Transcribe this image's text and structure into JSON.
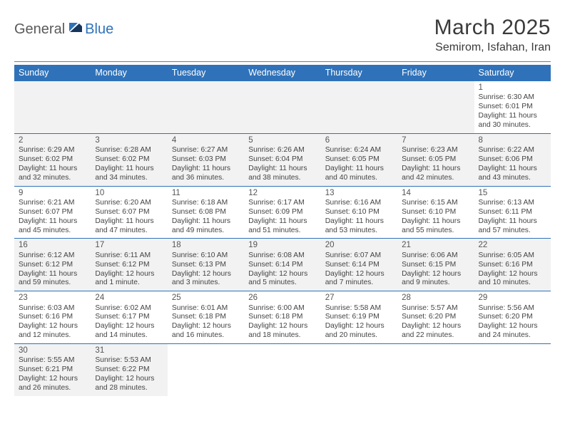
{
  "logo": {
    "general": "General",
    "blue": "Blue"
  },
  "title": "March 2025",
  "location": "Semirom, Isfahan, Iran",
  "colors": {
    "header_bg": "#2f72b9",
    "header_fg": "#ffffff",
    "alt_row_bg": "#f2f2f2",
    "rule": "#7a7a7a",
    "week_sep": "#2f72b9",
    "text": "#444444"
  },
  "day_names": [
    "Sunday",
    "Monday",
    "Tuesday",
    "Wednesday",
    "Thursday",
    "Friday",
    "Saturday"
  ],
  "layout": {
    "first_weekday_index": 6,
    "days_in_month": 31,
    "cell_font_size_pt": 8,
    "daynum_font_size_pt": 9,
    "title_font_size_pt": 22,
    "location_font_size_pt": 12
  },
  "weeks": [
    [
      {
        "empty": true
      },
      {
        "empty": true
      },
      {
        "empty": true
      },
      {
        "empty": true
      },
      {
        "empty": true
      },
      {
        "empty": true
      },
      {
        "num": "1",
        "sunrise": "Sunrise: 6:30 AM",
        "sunset": "Sunset: 6:01 PM",
        "daylight1": "Daylight: 11 hours",
        "daylight2": "and 30 minutes."
      }
    ],
    [
      {
        "num": "2",
        "sunrise": "Sunrise: 6:29 AM",
        "sunset": "Sunset: 6:02 PM",
        "daylight1": "Daylight: 11 hours",
        "daylight2": "and 32 minutes."
      },
      {
        "num": "3",
        "sunrise": "Sunrise: 6:28 AM",
        "sunset": "Sunset: 6:02 PM",
        "daylight1": "Daylight: 11 hours",
        "daylight2": "and 34 minutes."
      },
      {
        "num": "4",
        "sunrise": "Sunrise: 6:27 AM",
        "sunset": "Sunset: 6:03 PM",
        "daylight1": "Daylight: 11 hours",
        "daylight2": "and 36 minutes."
      },
      {
        "num": "5",
        "sunrise": "Sunrise: 6:26 AM",
        "sunset": "Sunset: 6:04 PM",
        "daylight1": "Daylight: 11 hours",
        "daylight2": "and 38 minutes."
      },
      {
        "num": "6",
        "sunrise": "Sunrise: 6:24 AM",
        "sunset": "Sunset: 6:05 PM",
        "daylight1": "Daylight: 11 hours",
        "daylight2": "and 40 minutes."
      },
      {
        "num": "7",
        "sunrise": "Sunrise: 6:23 AM",
        "sunset": "Sunset: 6:05 PM",
        "daylight1": "Daylight: 11 hours",
        "daylight2": "and 42 minutes."
      },
      {
        "num": "8",
        "sunrise": "Sunrise: 6:22 AM",
        "sunset": "Sunset: 6:06 PM",
        "daylight1": "Daylight: 11 hours",
        "daylight2": "and 43 minutes."
      }
    ],
    [
      {
        "num": "9",
        "sunrise": "Sunrise: 6:21 AM",
        "sunset": "Sunset: 6:07 PM",
        "daylight1": "Daylight: 11 hours",
        "daylight2": "and 45 minutes."
      },
      {
        "num": "10",
        "sunrise": "Sunrise: 6:20 AM",
        "sunset": "Sunset: 6:07 PM",
        "daylight1": "Daylight: 11 hours",
        "daylight2": "and 47 minutes."
      },
      {
        "num": "11",
        "sunrise": "Sunrise: 6:18 AM",
        "sunset": "Sunset: 6:08 PM",
        "daylight1": "Daylight: 11 hours",
        "daylight2": "and 49 minutes."
      },
      {
        "num": "12",
        "sunrise": "Sunrise: 6:17 AM",
        "sunset": "Sunset: 6:09 PM",
        "daylight1": "Daylight: 11 hours",
        "daylight2": "and 51 minutes."
      },
      {
        "num": "13",
        "sunrise": "Sunrise: 6:16 AM",
        "sunset": "Sunset: 6:10 PM",
        "daylight1": "Daylight: 11 hours",
        "daylight2": "and 53 minutes."
      },
      {
        "num": "14",
        "sunrise": "Sunrise: 6:15 AM",
        "sunset": "Sunset: 6:10 PM",
        "daylight1": "Daylight: 11 hours",
        "daylight2": "and 55 minutes."
      },
      {
        "num": "15",
        "sunrise": "Sunrise: 6:13 AM",
        "sunset": "Sunset: 6:11 PM",
        "daylight1": "Daylight: 11 hours",
        "daylight2": "and 57 minutes."
      }
    ],
    [
      {
        "num": "16",
        "sunrise": "Sunrise: 6:12 AM",
        "sunset": "Sunset: 6:12 PM",
        "daylight1": "Daylight: 11 hours",
        "daylight2": "and 59 minutes."
      },
      {
        "num": "17",
        "sunrise": "Sunrise: 6:11 AM",
        "sunset": "Sunset: 6:12 PM",
        "daylight1": "Daylight: 12 hours",
        "daylight2": "and 1 minute."
      },
      {
        "num": "18",
        "sunrise": "Sunrise: 6:10 AM",
        "sunset": "Sunset: 6:13 PM",
        "daylight1": "Daylight: 12 hours",
        "daylight2": "and 3 minutes."
      },
      {
        "num": "19",
        "sunrise": "Sunrise: 6:08 AM",
        "sunset": "Sunset: 6:14 PM",
        "daylight1": "Daylight: 12 hours",
        "daylight2": "and 5 minutes."
      },
      {
        "num": "20",
        "sunrise": "Sunrise: 6:07 AM",
        "sunset": "Sunset: 6:14 PM",
        "daylight1": "Daylight: 12 hours",
        "daylight2": "and 7 minutes."
      },
      {
        "num": "21",
        "sunrise": "Sunrise: 6:06 AM",
        "sunset": "Sunset: 6:15 PM",
        "daylight1": "Daylight: 12 hours",
        "daylight2": "and 9 minutes."
      },
      {
        "num": "22",
        "sunrise": "Sunrise: 6:05 AM",
        "sunset": "Sunset: 6:16 PM",
        "daylight1": "Daylight: 12 hours",
        "daylight2": "and 10 minutes."
      }
    ],
    [
      {
        "num": "23",
        "sunrise": "Sunrise: 6:03 AM",
        "sunset": "Sunset: 6:16 PM",
        "daylight1": "Daylight: 12 hours",
        "daylight2": "and 12 minutes."
      },
      {
        "num": "24",
        "sunrise": "Sunrise: 6:02 AM",
        "sunset": "Sunset: 6:17 PM",
        "daylight1": "Daylight: 12 hours",
        "daylight2": "and 14 minutes."
      },
      {
        "num": "25",
        "sunrise": "Sunrise: 6:01 AM",
        "sunset": "Sunset: 6:18 PM",
        "daylight1": "Daylight: 12 hours",
        "daylight2": "and 16 minutes."
      },
      {
        "num": "26",
        "sunrise": "Sunrise: 6:00 AM",
        "sunset": "Sunset: 6:18 PM",
        "daylight1": "Daylight: 12 hours",
        "daylight2": "and 18 minutes."
      },
      {
        "num": "27",
        "sunrise": "Sunrise: 5:58 AM",
        "sunset": "Sunset: 6:19 PM",
        "daylight1": "Daylight: 12 hours",
        "daylight2": "and 20 minutes."
      },
      {
        "num": "28",
        "sunrise": "Sunrise: 5:57 AM",
        "sunset": "Sunset: 6:20 PM",
        "daylight1": "Daylight: 12 hours",
        "daylight2": "and 22 minutes."
      },
      {
        "num": "29",
        "sunrise": "Sunrise: 5:56 AM",
        "sunset": "Sunset: 6:20 PM",
        "daylight1": "Daylight: 12 hours",
        "daylight2": "and 24 minutes."
      }
    ],
    [
      {
        "num": "30",
        "sunrise": "Sunrise: 5:55 AM",
        "sunset": "Sunset: 6:21 PM",
        "daylight1": "Daylight: 12 hours",
        "daylight2": "and 26 minutes."
      },
      {
        "num": "31",
        "sunrise": "Sunrise: 5:53 AM",
        "sunset": "Sunset: 6:22 PM",
        "daylight1": "Daylight: 12 hours",
        "daylight2": "and 28 minutes."
      },
      {
        "empty": true
      },
      {
        "empty": true
      },
      {
        "empty": true
      },
      {
        "empty": true
      },
      {
        "empty": true
      }
    ]
  ]
}
